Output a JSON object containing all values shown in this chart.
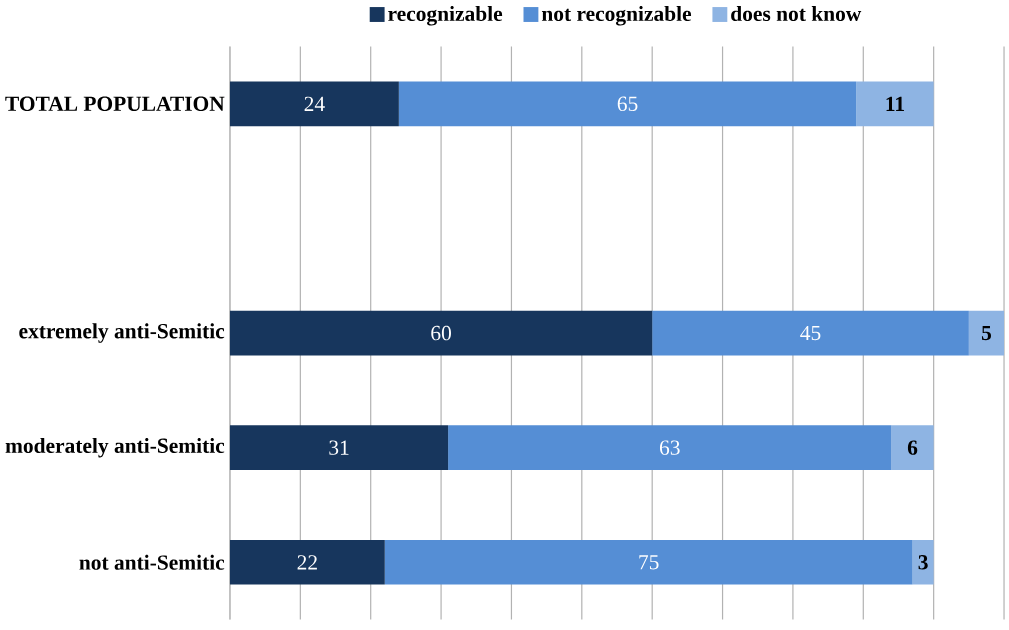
{
  "chart_data": {
    "type": "bar",
    "orientation": "horizontal",
    "stacked": true,
    "categories": [
      "TOTAL POPULATION",
      null,
      "extremely anti-Semitic",
      "moderately anti-Semitic",
      "not anti-Semitic"
    ],
    "series": [
      {
        "name": "recognizable",
        "color": "#17365d",
        "values": [
          24,
          null,
          60,
          31,
          22
        ],
        "value_labels": [
          "24",
          null,
          "60",
          "31",
          "22"
        ]
      },
      {
        "name": "not recognizable",
        "color": "#558ed5",
        "values": [
          65,
          null,
          45,
          63,
          75
        ],
        "value_labels": [
          "65",
          null,
          "45",
          "63",
          "75"
        ]
      },
      {
        "name": "does not know",
        "color": "#8eb4e3",
        "values": [
          11,
          null,
          5,
          6,
          3
        ],
        "value_labels": [
          "11",
          null,
          "5",
          "6",
          "3"
        ]
      }
    ],
    "grid": "x",
    "legend": "top",
    "tick_labels": "y"
  }
}
